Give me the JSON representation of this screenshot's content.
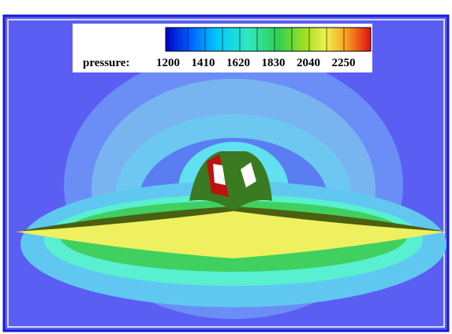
{
  "legend": {
    "label": "pressure:",
    "ticks": [
      1200,
      1410,
      1620,
      1830,
      2040,
      2250
    ]
  }
}
